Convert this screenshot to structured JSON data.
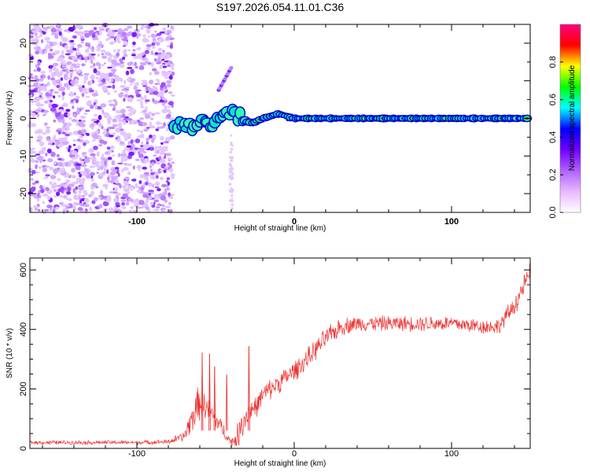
{
  "title": "S197.2026.054.11.01.C36",
  "chart_data": [
    {
      "type": "heatmap",
      "xlabel": "Height of straight line (km)",
      "ylabel": "Frequency (Hz)",
      "xlim": [
        -168,
        150
      ],
      "ylim": [
        -25,
        25
      ],
      "xticks": [
        -100,
        0,
        100
      ],
      "yticks": [
        -20,
        -10,
        0,
        10,
        20
      ],
      "colorbar": {
        "label": "Normalized spectral amplitude",
        "range": [
          0,
          1
        ],
        "ticks": [
          "0.0",
          "0.2",
          "0.4",
          "0.6",
          "0.8"
        ],
        "tick_values": [
          0.0,
          0.2,
          0.4,
          0.6,
          0.8
        ],
        "colors": [
          "#ffffff",
          "#e8b8ff",
          "#b060ff",
          "#7000ff",
          "#0000ff",
          "#00ffff",
          "#00ff00",
          "#ffff00",
          "#ff0000",
          "#ff0080"
        ]
      },
      "noise_region_x": [
        -168,
        -78
      ],
      "signal_track": {
        "x": [
          -75,
          -68,
          -60,
          -52,
          -46,
          -40,
          -36,
          -31,
          -26,
          -20,
          -15,
          -10,
          -6,
          -2,
          0,
          40,
          80,
          120,
          150
        ],
        "freq": [
          -1.5,
          -2.0,
          -1.2,
          -1.5,
          0.0,
          1.0,
          0.2,
          -0.8,
          -1.2,
          0.0,
          0.6,
          1.2,
          0.8,
          0.2,
          0.0,
          0.0,
          0.0,
          0.0,
          0.0
        ]
      },
      "streak": {
        "x": [
          -48,
          -40
        ],
        "freq": [
          7.5,
          13.5
        ]
      }
    },
    {
      "type": "line",
      "xlabel": "Height of straight line (km)",
      "ylabel": "SNR (10 * v/v)",
      "xlim": [
        -168,
        150
      ],
      "ylim": [
        0,
        640
      ],
      "xticks": [
        -100,
        0,
        100
      ],
      "yticks": [
        0,
        200,
        400,
        600
      ],
      "color": "#ee3030",
      "x": [
        -168,
        -100,
        -80,
        -70,
        -65,
        -60,
        -55,
        -50,
        -45,
        -40,
        -36,
        -32,
        -28,
        -24,
        -20,
        -10,
        0,
        10,
        20,
        30,
        40,
        60,
        80,
        100,
        120,
        130,
        140,
        150
      ],
      "values": [
        20,
        20,
        22,
        40,
        100,
        160,
        130,
        100,
        60,
        20,
        40,
        100,
        130,
        140,
        180,
        220,
        260,
        310,
        370,
        410,
        420,
        420,
        420,
        420,
        410,
        410,
        480,
        590
      ],
      "noise_amp": [
        8,
        8,
        10,
        20,
        60,
        70,
        50,
        40,
        30,
        15,
        50,
        60,
        50,
        40,
        40,
        40,
        40,
        40,
        40,
        35,
        30,
        30,
        30,
        30,
        30,
        30,
        40,
        40
      ],
      "spikes": [
        {
          "x": -58.5,
          "value": 322
        },
        {
          "x": -53.8,
          "value": 318
        },
        {
          "x": -42.9,
          "value": 248
        },
        {
          "x": -28.8,
          "value": 343
        },
        {
          "x": -50.6,
          "value": 275
        }
      ]
    }
  ]
}
